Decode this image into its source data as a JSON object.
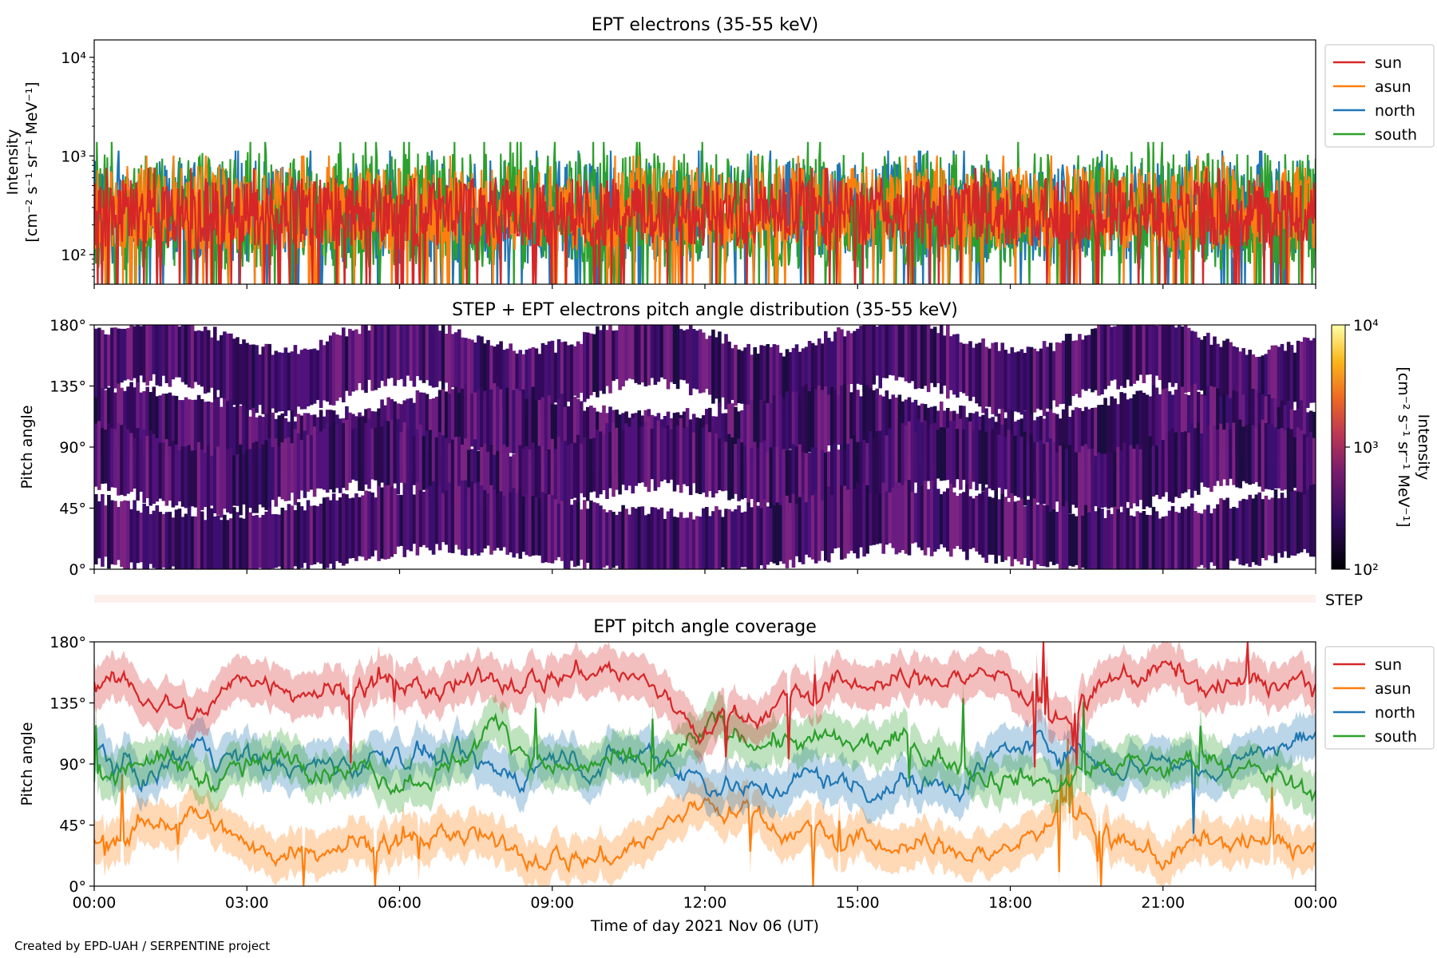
{
  "footer": "Created by EPD-UAH / SERPENTINE project",
  "xaxis": {
    "label": "Time of day 2021 Nov 06 (UT)",
    "ticks": [
      "00:00",
      "03:00",
      "06:00",
      "09:00",
      "12:00",
      "15:00",
      "18:00",
      "21:00",
      "00:00"
    ],
    "range_hours": [
      0,
      24
    ]
  },
  "colors": {
    "sun": "#d62728",
    "asun": "#ff7f0e",
    "north": "#1f77b4",
    "south": "#2ca02c",
    "step_strip": "#fdf0ec"
  },
  "chart_data": [
    {
      "type": "line",
      "title": "EPT electrons (35-55 keV)",
      "ylabel": "Intensity",
      "yunits": "[cm⁻² s⁻¹ sr⁻¹ MeV⁻¹]",
      "yscale": "log",
      "ylim": [
        50,
        15000
      ],
      "yticks": [
        {
          "value": 100,
          "label": "10²"
        },
        {
          "value": 1000,
          "label": "10³"
        },
        {
          "value": 10000,
          "label": "10⁴"
        }
      ],
      "legend": {
        "placement": "outside-right-top"
      },
      "series": [
        {
          "name": "sun",
          "color": "#d62728",
          "typical": [
            120,
            600
          ]
        },
        {
          "name": "asun",
          "color": "#ff7f0e",
          "typical": [
            110,
            800
          ]
        },
        {
          "name": "north",
          "color": "#1f77b4",
          "typical": [
            80,
            900
          ]
        },
        {
          "name": "south",
          "color": "#2ca02c",
          "typical": [
            70,
            1100
          ]
        }
      ]
    },
    {
      "type": "heatmap",
      "title": "STEP + EPT electrons pitch angle distribution (35-55 keV)",
      "ylabel": "Pitch angle",
      "ylim": [
        0,
        180
      ],
      "yticks": [
        "0°",
        "45°",
        "90°",
        "135°",
        "180°"
      ],
      "colorbar": {
        "label": "Intensity",
        "units": "[cm⁻² s⁻¹ sr⁻¹ MeV⁻¹]",
        "scale": "log",
        "range": [
          100,
          10000
        ],
        "ticks": [
          "10²",
          "10³",
          "10⁴"
        ]
      },
      "typical_intensity": [
        150,
        600
      ]
    },
    {
      "type": "area",
      "title": "",
      "label": "STEP",
      "color": "#fdf0ec"
    },
    {
      "type": "line",
      "title": "EPT pitch angle coverage",
      "ylabel": "Pitch angle",
      "ylim": [
        0,
        180
      ],
      "yticks": [
        "0°",
        "45°",
        "90°",
        "135°",
        "180°"
      ],
      "legend": {
        "placement": "outside-right-top"
      },
      "series": [
        {
          "name": "sun",
          "color": "#d62728",
          "x": [
            0,
            1,
            2,
            3,
            4,
            5,
            6,
            7,
            8,
            9,
            10,
            11,
            12,
            13,
            14,
            15,
            16,
            17,
            18,
            19,
            20,
            21,
            22,
            23,
            24
          ],
          "y": [
            150,
            140,
            125,
            155,
            150,
            145,
            150,
            140,
            155,
            155,
            160,
            145,
            115,
            130,
            140,
            150,
            150,
            155,
            155,
            115,
            150,
            160,
            145,
            150,
            150
          ]
        },
        {
          "name": "asun",
          "color": "#ff7f0e",
          "x": [
            0,
            1,
            2,
            3,
            4,
            5,
            6,
            7,
            8,
            9,
            10,
            11,
            12,
            13,
            14,
            15,
            16,
            17,
            18,
            19,
            20,
            21,
            22,
            23,
            24
          ],
          "y": [
            30,
            45,
            55,
            25,
            30,
            35,
            30,
            40,
            25,
            25,
            20,
            35,
            65,
            50,
            40,
            30,
            30,
            25,
            25,
            60,
            30,
            20,
            35,
            30,
            30
          ]
        },
        {
          "name": "north",
          "color": "#1f77b4",
          "x": [
            0,
            1,
            2,
            3,
            4,
            5,
            6,
            7,
            8,
            9,
            10,
            11,
            12,
            13,
            14,
            15,
            16,
            17,
            18,
            19,
            20,
            21,
            22,
            23,
            24
          ],
          "y": [
            100,
            80,
            105,
            95,
            85,
            90,
            100,
            90,
            80,
            95,
            90,
            100,
            80,
            70,
            80,
            75,
            75,
            80,
            100,
            105,
            90,
            95,
            85,
            100,
            110
          ]
        },
        {
          "name": "south",
          "color": "#2ca02c",
          "x": [
            0,
            1,
            2,
            3,
            4,
            5,
            6,
            7,
            8,
            9,
            10,
            11,
            12,
            13,
            14,
            15,
            16,
            17,
            18,
            19,
            20,
            21,
            22,
            23,
            24
          ],
          "y": [
            75,
            100,
            80,
            85,
            95,
            90,
            80,
            90,
            120,
            85,
            90,
            80,
            115,
            110,
            105,
            100,
            105,
            90,
            85,
            75,
            90,
            85,
            95,
            80,
            70
          ]
        }
      ]
    }
  ]
}
